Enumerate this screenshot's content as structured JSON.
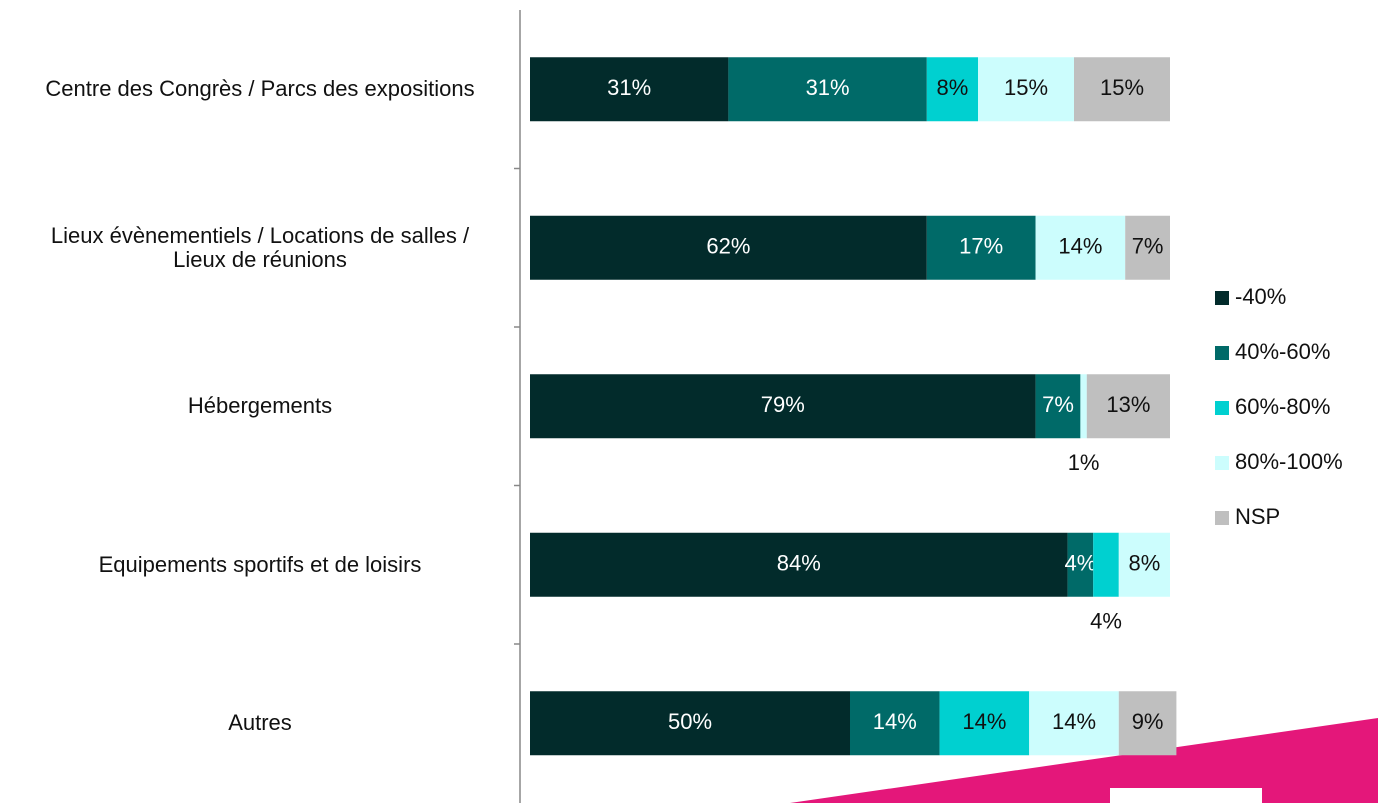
{
  "chart_data": {
    "type": "stacked_bar_horizontal",
    "categories": [
      "Centre des Congrès / Parcs des expositions",
      "Lieux évènementiels / Locations de salles / Lieux de réunions",
      "Hébergements",
      "Equipements sportifs et de loisirs",
      "Autres"
    ],
    "series": [
      {
        "name": "-40%",
        "color": "#022b2b",
        "values": [
          31,
          62,
          79,
          84,
          50
        ],
        "value_labels": [
          "31%",
          "62%",
          "79%",
          "84%",
          "50%"
        ]
      },
      {
        "name": "40%-60%",
        "color": "#006a68",
        "values": [
          31,
          17,
          7,
          4,
          14
        ],
        "value_labels": [
          "31%",
          "17%",
          "7%",
          "4%",
          "14%"
        ]
      },
      {
        "name": "60%-80%",
        "color": "#00d0d0",
        "values": [
          8,
          null,
          null,
          4,
          14
        ],
        "value_labels": [
          "8%",
          null,
          null,
          "4%",
          "14%"
        ]
      },
      {
        "name": "80%-100%",
        "color": "#ccfdfd",
        "values": [
          15,
          14,
          1,
          8,
          14
        ],
        "value_labels": [
          "15%",
          "14%",
          "1%",
          "8%",
          "14%"
        ]
      },
      {
        "name": "NSP",
        "color": "#bfbfbf",
        "values": [
          15,
          7,
          13,
          null,
          9
        ],
        "value_labels": [
          "15%",
          "7%",
          "13%",
          null,
          "9%"
        ]
      }
    ],
    "legend": "right"
  }
}
